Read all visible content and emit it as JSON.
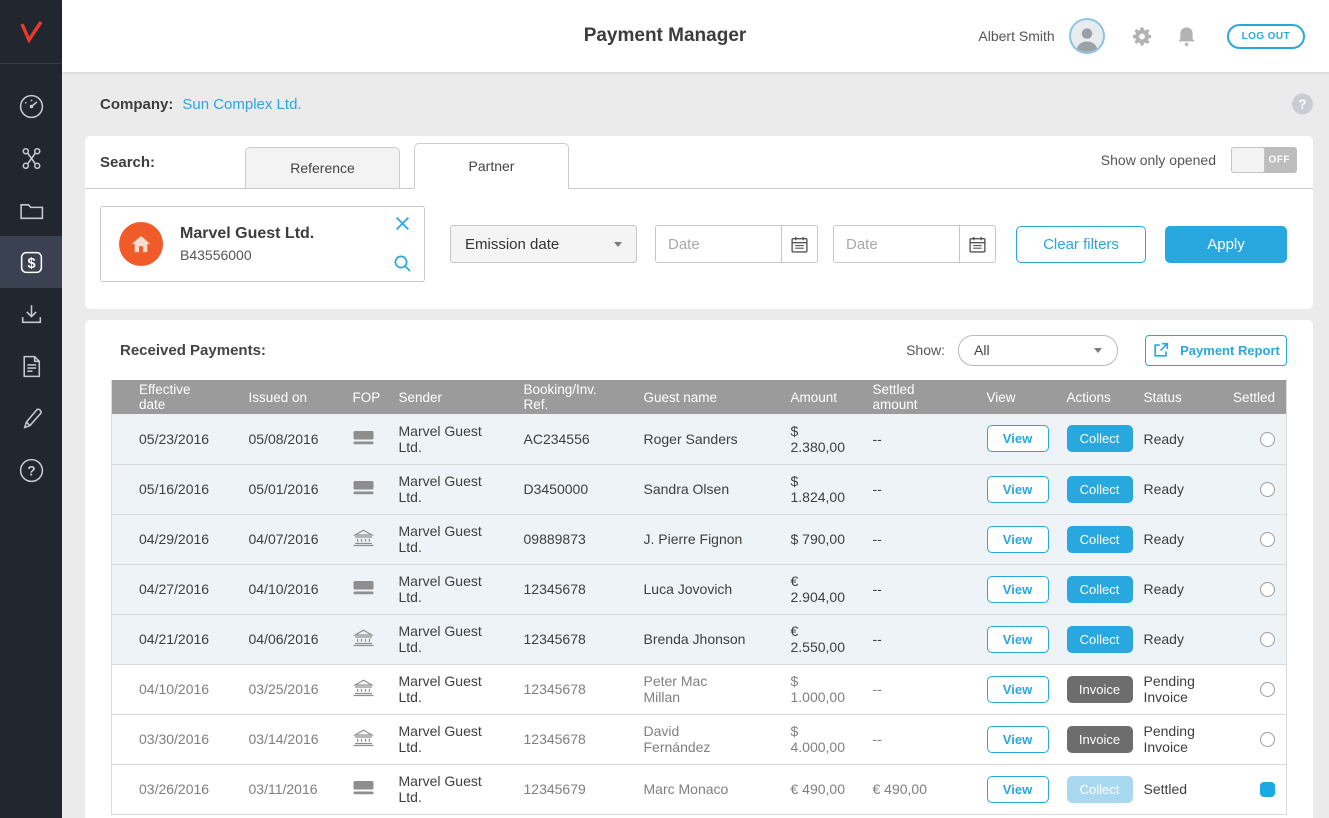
{
  "header": {
    "title": "Payment Manager",
    "user_name": "Albert Smith",
    "logout_label": "LOG OUT"
  },
  "sidebar": {
    "items": [
      "dashboard",
      "connections",
      "folders",
      "payments",
      "downloads",
      "documents",
      "edit",
      "help"
    ],
    "active_item": "payments"
  },
  "company_bar": {
    "label": "Company:",
    "company_name": "Sun Complex Ltd."
  },
  "search_panel": {
    "label": "Search:",
    "tabs": [
      {
        "label": "Reference",
        "active": false
      },
      {
        "label": "Partner",
        "active": true
      }
    ],
    "toggle": {
      "label": "Show only opened",
      "state": "OFF"
    },
    "partner_chip": {
      "name": "Marvel Guest Ltd.",
      "code": "B43556000"
    },
    "filters": {
      "field_selector_value": "Emission date",
      "date_from_placeholder": "Date",
      "date_to_placeholder": "Date",
      "clear_label": "Clear filters",
      "apply_label": "Apply"
    }
  },
  "payments_panel": {
    "title": "Received Payments:",
    "show_label": "Show:",
    "show_filter_value": "All",
    "report_label": "Payment Report",
    "table": {
      "columns": [
        "Effective date",
        "Issued on",
        "FOP",
        "Sender",
        "Booking/Inv. Ref.",
        "Guest name",
        "Amount",
        "Settled amount",
        "View",
        "Actions",
        "Status",
        "Settled"
      ],
      "view_label": "View",
      "rows": [
        {
          "effective_date": "05/23/2016",
          "issued_on": "05/08/2016",
          "fop": "card",
          "sender": "Marvel Guest Ltd.",
          "booking_ref": "AC234556",
          "guest_name": "Roger Sanders",
          "amount": "$  2.380,00",
          "settled_amount": "--",
          "action": "Collect",
          "action_style": "primary",
          "status": "Ready",
          "settled": false,
          "highlighted": true
        },
        {
          "effective_date": "05/16/2016",
          "issued_on": "05/01/2016",
          "fop": "card",
          "sender": "Marvel Guest Ltd.",
          "booking_ref": "D3450000",
          "guest_name": "Sandra Olsen",
          "amount": "$  1.824,00",
          "settled_amount": "--",
          "action": "Collect",
          "action_style": "primary",
          "status": "Ready",
          "settled": false,
          "highlighted": true
        },
        {
          "effective_date": "04/29/2016",
          "issued_on": "04/07/2016",
          "fop": "bank",
          "sender": "Marvel Guest Ltd.",
          "booking_ref": "09889873",
          "guest_name": "J. Pierre Fignon",
          "amount": "$  790,00",
          "settled_amount": "--",
          "action": "Collect",
          "action_style": "primary",
          "status": "Ready",
          "settled": false,
          "highlighted": true
        },
        {
          "effective_date": "04/27/2016",
          "issued_on": "04/10/2016",
          "fop": "card",
          "sender": "Marvel Guest Ltd.",
          "booking_ref": "12345678",
          "guest_name": "Luca Jovovich",
          "amount": "€  2.904,00",
          "settled_amount": "--",
          "action": "Collect",
          "action_style": "primary",
          "status": "Ready",
          "settled": false,
          "highlighted": true
        },
        {
          "effective_date": "04/21/2016",
          "issued_on": "04/06/2016",
          "fop": "bank",
          "sender": "Marvel Guest Ltd.",
          "booking_ref": "12345678",
          "guest_name": "Brenda Jhonson",
          "amount": "€  2.550,00",
          "settled_amount": "--",
          "action": "Collect",
          "action_style": "primary",
          "status": "Ready",
          "settled": false,
          "highlighted": true
        },
        {
          "effective_date": "04/10/2016",
          "issued_on": "03/25/2016",
          "fop": "bank",
          "sender": "Marvel Guest Ltd.",
          "booking_ref": "12345678",
          "guest_name": "Peter Mac Millan",
          "amount": "$  1.000,00",
          "settled_amount": "--",
          "action": "Invoice",
          "action_style": "dark",
          "status": "Pending Invoice",
          "settled": false,
          "highlighted": false
        },
        {
          "effective_date": "03/30/2016",
          "issued_on": "03/14/2016",
          "fop": "bank",
          "sender": "Marvel Guest Ltd.",
          "booking_ref": "12345678",
          "guest_name": "David Fernández",
          "amount": "$  4.000,00",
          "settled_amount": "--",
          "action": "Invoice",
          "action_style": "dark",
          "status": "Pending Invoice",
          "settled": false,
          "highlighted": false
        },
        {
          "effective_date": "03/26/2016",
          "issued_on": "03/11/2016",
          "fop": "card",
          "sender": "Marvel Guest Ltd.",
          "booking_ref": "12345679",
          "guest_name": "Marc Monaco",
          "amount": "€  490,00",
          "settled_amount": "€  490,00",
          "action": "Collect",
          "action_style": "disabled",
          "status": "Settled",
          "settled": true,
          "highlighted": false
        }
      ]
    }
  },
  "colors": {
    "accent": "#29A7DF",
    "sidebar_bg": "#21262F",
    "sidebar_active_bg": "#3A4150",
    "logo_red": "#E8392E",
    "table_header_bg": "#9B9B9B",
    "row_highlight": "#EDF3F7",
    "action_dark": "#6D6D6D",
    "action_disabled": "#A9D9F1",
    "page_bg": "#EBEBEB",
    "partner_avatar_orange": "#F15B2A"
  }
}
